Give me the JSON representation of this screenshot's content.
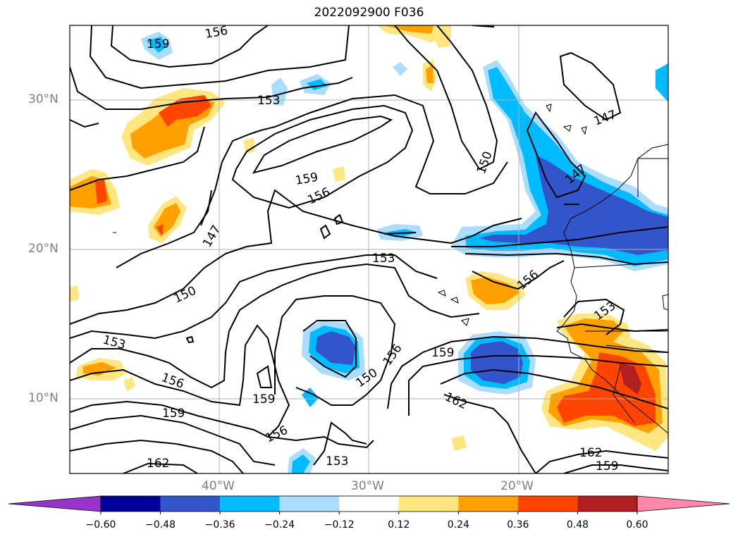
{
  "title": "2022092900 F036",
  "map": {
    "lon_range": [
      -50,
      -10
    ],
    "lat_range": [
      5,
      35
    ],
    "lat_ticks": [
      {
        "lat": 30,
        "label": "30°N"
      },
      {
        "lat": 20,
        "label": "20°N"
      },
      {
        "lat": 10,
        "label": "10°N"
      }
    ],
    "lon_ticks": [
      {
        "lon": -40,
        "label": "40°W"
      },
      {
        "lon": -30,
        "label": "30°W"
      },
      {
        "lon": -20,
        "label": "20°W"
      }
    ],
    "gridlines": true
  },
  "contour_labels": [
    "159",
    "156",
    "153",
    "159",
    "156",
    "147",
    "150",
    "153",
    "156",
    "159",
    "162",
    "153",
    "150",
    "156",
    "159",
    "162",
    "150",
    "147",
    "156",
    "153",
    "162",
    "159",
    "147"
  ],
  "colorbar": {
    "ticks": [
      "−0.60",
      "−0.48",
      "−0.36",
      "−0.24",
      "−0.12",
      "0.12",
      "0.24",
      "0.36",
      "0.48",
      "0.60"
    ],
    "colors": [
      "#9933cc",
      "#000099",
      "#3355cc",
      "#00bbff",
      "#aaddff",
      "#ffffff",
      "#ffe680",
      "#ffa000",
      "#ff4400",
      "#b02020",
      "#ff88aa"
    ]
  }
}
